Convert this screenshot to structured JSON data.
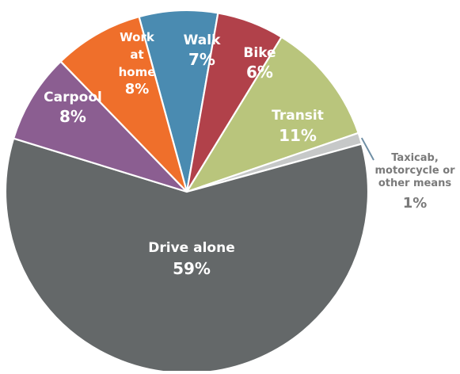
{
  "chart_data": {
    "type": "pie",
    "start_angle_deg": -105.3,
    "direction": "clockwise",
    "label_color_inside": "#ffffff",
    "label_color_outside": "#7a7a7a",
    "slices": [
      {
        "label": "Walk",
        "label_lines": [
          "Walk"
        ],
        "value": 7,
        "value_text": "7%",
        "color": "#4a8bb1",
        "label_position": "inside"
      },
      {
        "label": "Bike",
        "label_lines": [
          "Bike"
        ],
        "value": 6,
        "value_text": "6%",
        "color": "#b1414a",
        "label_position": "inside"
      },
      {
        "label": "Transit",
        "label_lines": [
          "Transit"
        ],
        "value": 11,
        "value_text": "11%",
        "color": "#b9c57c",
        "label_position": "inside"
      },
      {
        "label": "Taxicab, motorcycle or other means",
        "label_lines": [
          "Taxicab,",
          "motorcycle or",
          "other means"
        ],
        "value": 1,
        "value_text": "1%",
        "color": "#c6c8c8",
        "label_position": "outside"
      },
      {
        "label": "Drive alone",
        "label_lines": [
          "Drive alone"
        ],
        "value": 59,
        "value_text": "59%",
        "color": "#646869",
        "label_position": "inside"
      },
      {
        "label": "Carpool",
        "label_lines": [
          "Carpool"
        ],
        "value": 8,
        "value_text": "8%",
        "color": "#8b5e91",
        "label_position": "inside"
      },
      {
        "label": "Work at home",
        "label_lines": [
          "Work",
          "at",
          "home"
        ],
        "value": 8,
        "value_text": "8%",
        "color": "#ef6f2b",
        "label_position": "inside"
      }
    ]
  }
}
